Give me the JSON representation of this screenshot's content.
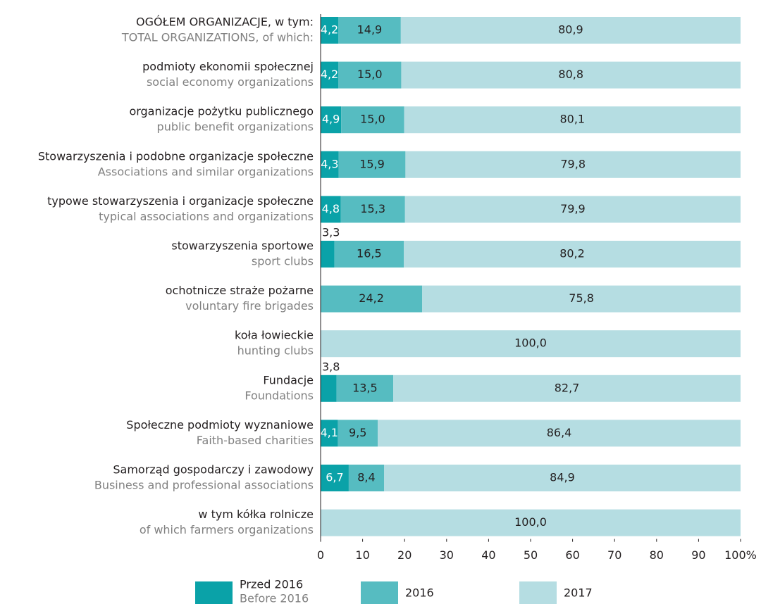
{
  "chart_data": {
    "type": "stacked-bar-horizontal",
    "categories": [
      "OGÓŁEM ORGANIZACJE, w tym:",
      "podmioty ekonomii społecznej",
      "organizacje pożytku publicznego",
      "Stowarzyszenia i podobne organizacje społeczne",
      "typowe stowarzyszenia i  organizacje społeczne",
      "stowarzyszenia sportowe",
      "ochotnicze straże pożarne",
      "koła łowieckie",
      "Fundacje",
      "Społeczne podmioty wyznaniowe",
      "Samorząd gospodarczy i zawodowy",
      "w tym kółka rolnicze"
    ],
    "categories_en": [
      "TOTAL ORGANIZATIONS, of which:",
      "social economy organizations",
      "public benefit organizations",
      "Associations and similar organizations",
      "typical associations and organizations",
      "sport clubs",
      "voluntary fire brigades",
      "hunting clubs",
      "Foundations",
      "Faith-based charities",
      "Business and professional associations",
      "of which farmers organizations"
    ],
    "series": [
      {
        "name": "Przed 2016",
        "name_en": "Before 2016",
        "color": "#0aa2a8",
        "values": [
          4.2,
          4.2,
          4.9,
          4.3,
          4.8,
          3.3,
          null,
          null,
          3.8,
          4.1,
          6.7,
          null
        ],
        "value_labels": [
          "4,2",
          "4,2",
          "4,9",
          "4,3",
          "4,8",
          "3,3",
          null,
          null,
          "3,8",
          "4,1",
          "6,7",
          null
        ]
      },
      {
        "name": "2016",
        "color": "#56bcc1",
        "values": [
          14.9,
          15.0,
          15.0,
          15.9,
          15.3,
          16.5,
          24.2,
          null,
          13.5,
          9.5,
          8.4,
          null
        ],
        "value_labels": [
          "14,9",
          "15,0",
          "15,0",
          "15,9",
          "15,3",
          "16,5",
          "24,2",
          null,
          "13,5",
          "9,5",
          "8,4",
          null
        ]
      },
      {
        "name": "2017",
        "color": "#b5dde2",
        "values": [
          80.9,
          80.8,
          80.1,
          79.8,
          79.9,
          80.2,
          75.8,
          100.0,
          82.7,
          86.4,
          84.9,
          100.0
        ],
        "value_labels": [
          "80,9",
          "80,8",
          "80,1",
          "79,8",
          "79,9",
          "80,2",
          "75,8",
          "100,0",
          "82,7",
          "86,4",
          "84,9",
          "100,0"
        ]
      }
    ],
    "xlim": [
      0,
      100
    ],
    "xticks": [
      0,
      10,
      20,
      30,
      40,
      50,
      60,
      70,
      80,
      90,
      {
        "value": 100,
        "label": "100%"
      }
    ]
  }
}
